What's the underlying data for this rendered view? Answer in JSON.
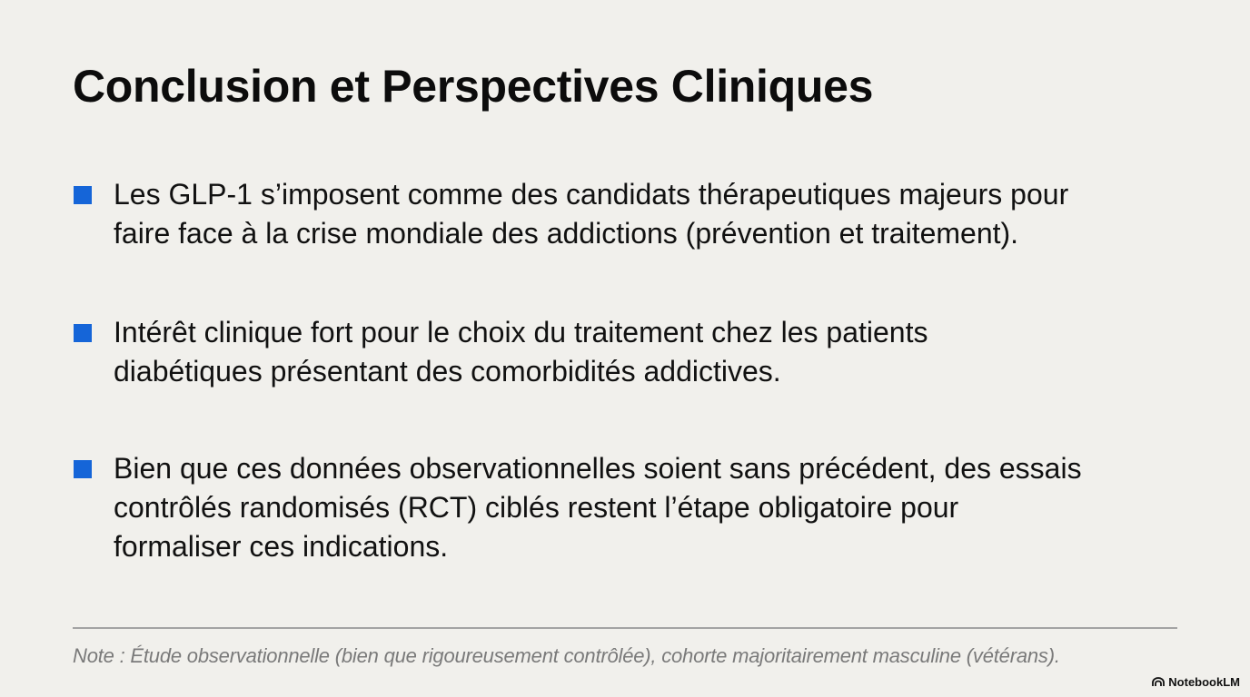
{
  "slide": {
    "title": "Conclusion et Perspectives Cliniques",
    "bullet_color": "#1565d8",
    "items": [
      {
        "lines": [
          "Les GLP-1 s’imposent comme des candidats thérapeutiques majeurs pour",
          "faire face à la crise mondiale des addictions (prévention et traitement)."
        ]
      },
      {
        "lines": [
          "Intérêt clinique fort pour le choix du traitement chez les patients",
          "diabétiques présentant des comorbidités addictives."
        ]
      },
      {
        "lines": [
          "Bien que ces données observationnelles soient sans précédent, des essais",
          "contrôlés randomisés (RCT) ciblés restent l’étape obligatoire pour",
          "formaliser ces indications."
        ]
      }
    ],
    "note": "Note : Étude observationnelle (bien que rigoureusement contrôlée), cohorte majoritairement masculine (vétérans).",
    "brand": {
      "icon": "notebooklm-logo-icon",
      "label": "NotebookLM"
    }
  }
}
